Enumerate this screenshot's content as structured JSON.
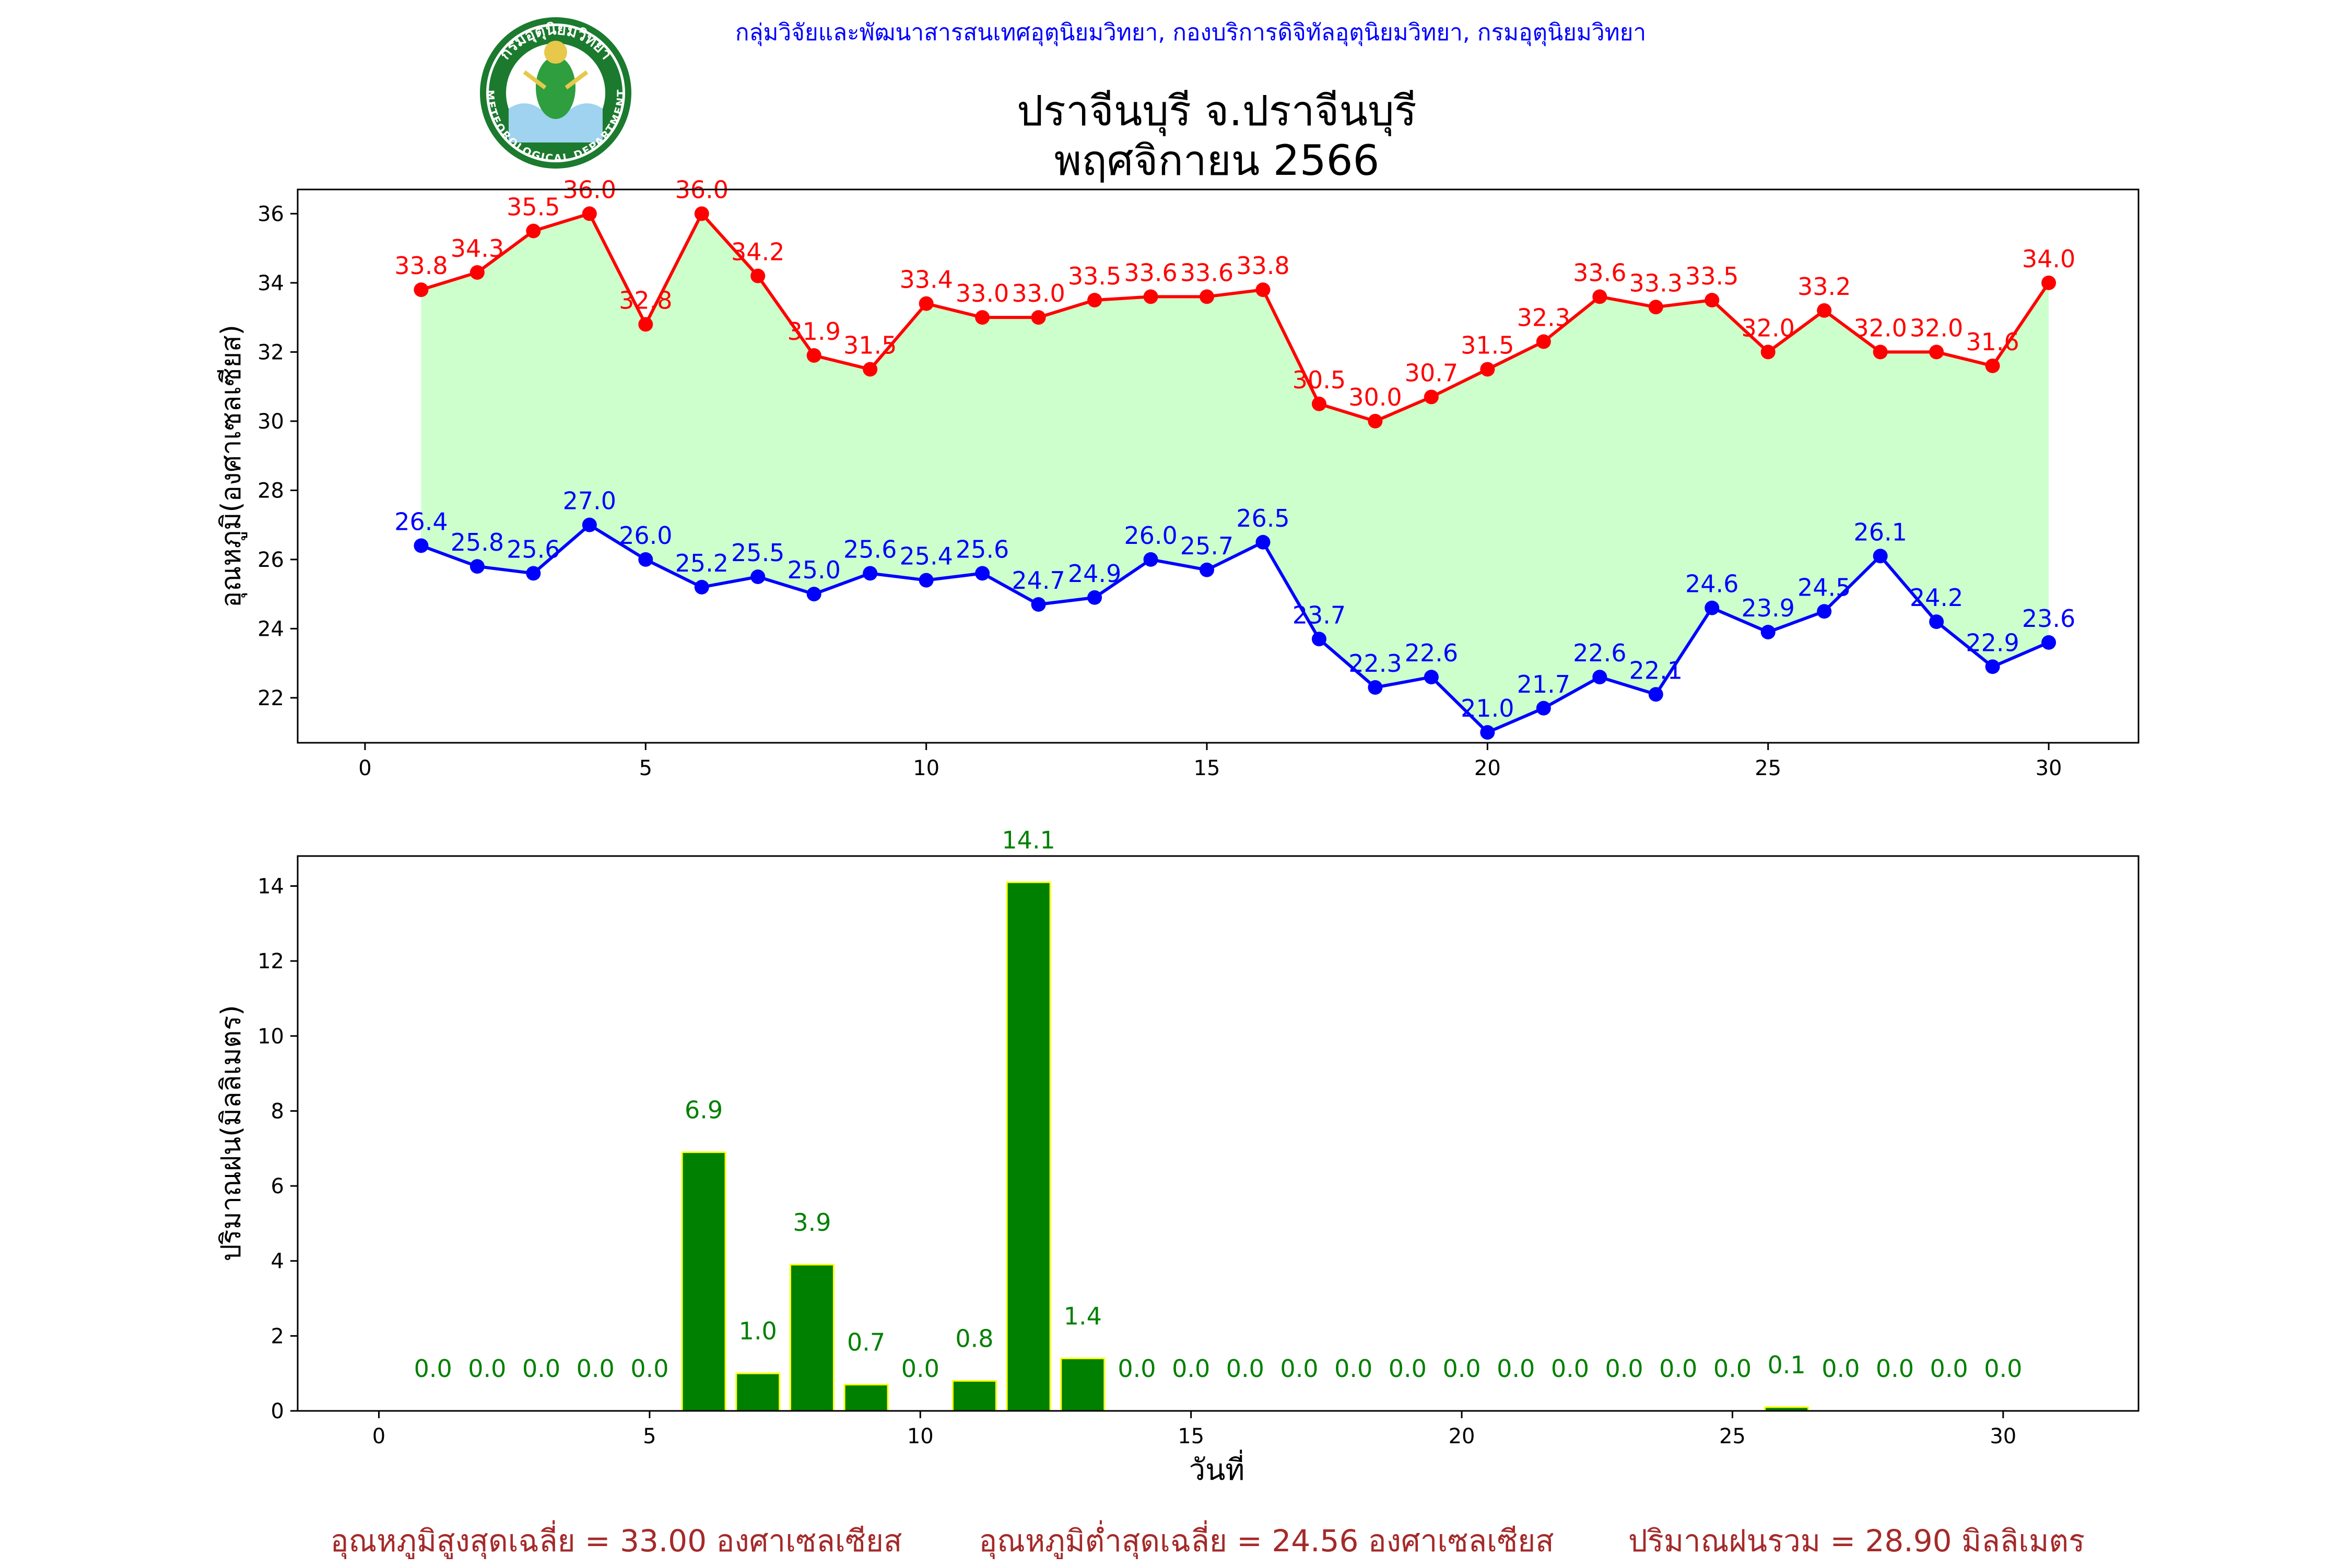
{
  "header": {
    "agency": "กลุ่มวิจัยและพัฒนาสารสนเทศอุตุนิยมวิทยา, กองบริการดิจิทัลอุตุนิยมวิทยา, กรมอุตุนิยมวิทยา",
    "title_line1": "ปราจีนบุรี จ.ปราจีนบุรี",
    "title_line2": "พฤศจิกายน 2566",
    "logo_text": "กรมอุตุนิยมวิทยา",
    "logo_text_en": "METEOROLOGICAL DEPARTMENT"
  },
  "footer": {
    "avg_max": "อุณหภูมิสูงสุดเฉลี่ย = 33.00 องศาเซลเซียส",
    "avg_min": "อุณหภูมิต่ำสุดเฉลี่ย = 24.56 องศาเซลเซียส",
    "total_rain": "ปริมาณฝนรวม = 28.90 มิลลิเมตร"
  },
  "colors": {
    "max": "#ff0000",
    "min": "#0000ff",
    "fill": "#ccffcc",
    "bar": "#008000",
    "bar_edge": "#ffff00",
    "rain_label": "#008000",
    "header_text": "#0000ff",
    "footer_text": "#a52a2a"
  },
  "chart_data": [
    {
      "type": "line",
      "ylabel": "อุณหภูมิ(องศาเซลเซียส)",
      "xlabel": "",
      "xlim": [
        -1.2,
        31.6
      ],
      "ylim": [
        20.7,
        36.7
      ],
      "xticks": [
        0,
        5,
        10,
        15,
        20,
        25,
        30
      ],
      "yticks": [
        22,
        24,
        26,
        28,
        30,
        32,
        34,
        36
      ],
      "grid": false,
      "fill_between": true,
      "x": [
        1,
        2,
        3,
        4,
        5,
        6,
        7,
        8,
        9,
        10,
        11,
        12,
        13,
        14,
        15,
        16,
        17,
        18,
        19,
        20,
        21,
        22,
        23,
        24,
        25,
        26,
        27,
        28,
        29,
        30
      ],
      "series": [
        {
          "key": "max",
          "values": [
            33.8,
            34.3,
            35.5,
            36.0,
            32.8,
            36.0,
            34.2,
            31.9,
            31.5,
            33.4,
            33.0,
            33.0,
            33.5,
            33.6,
            33.6,
            33.8,
            30.5,
            30.0,
            30.7,
            31.5,
            32.3,
            33.6,
            33.3,
            33.5,
            32.0,
            33.2,
            32.0,
            32.0,
            31.6,
            34.0
          ],
          "labels": [
            "33.8",
            "34.3",
            "35.5",
            "36.0",
            "32.8",
            "36.0",
            "34.2",
            "31.9",
            "31.5",
            "33.4",
            "33.0",
            "33.0",
            "33.5",
            "33.6",
            "33.6",
            "33.8",
            "30.5",
            "30.0",
            "30.7",
            "31.5",
            "32.3",
            "33.6",
            "33.3",
            "33.5",
            "32.0",
            "33.2",
            "32.0",
            "32.0",
            "31.6",
            "34.0"
          ]
        },
        {
          "key": "min",
          "values": [
            26.4,
            25.8,
            25.6,
            27.0,
            26.0,
            25.2,
            25.5,
            25.0,
            25.6,
            25.4,
            25.6,
            24.7,
            24.9,
            26.0,
            25.7,
            26.5,
            23.7,
            22.3,
            22.6,
            21.0,
            21.7,
            22.6,
            22.1,
            24.6,
            23.9,
            24.5,
            26.1,
            24.2,
            22.9,
            23.6
          ],
          "labels": [
            "26.4",
            "25.8",
            "25.6",
            "27.0",
            "26.0",
            "25.2",
            "25.5",
            "25.0",
            "25.6",
            "25.4",
            "25.6",
            "24.7",
            "24.9",
            "26.0",
            "25.7",
            "26.5",
            "23.7",
            "22.3",
            "22.6",
            "21.0",
            "21.7",
            "22.6",
            "22.1",
            "24.6",
            "23.9",
            "24.5",
            "26.1",
            "24.2",
            "22.9",
            "23.6"
          ]
        }
      ]
    },
    {
      "type": "bar",
      "ylabel": "ปริมาณฝน(มิลลิเมตร)",
      "xlabel": "วันที่",
      "xlim": [
        -1.5,
        32.5
      ],
      "ylim": [
        0,
        14.8
      ],
      "xticks": [
        0,
        5,
        10,
        15,
        20,
        25,
        30
      ],
      "yticks": [
        0,
        2,
        4,
        6,
        8,
        10,
        12,
        14
      ],
      "grid": false,
      "x": [
        1,
        2,
        3,
        4,
        5,
        6,
        7,
        8,
        9,
        10,
        11,
        12,
        13,
        14,
        15,
        16,
        17,
        18,
        19,
        20,
        21,
        22,
        23,
        24,
        25,
        26,
        27,
        28,
        29,
        30
      ],
      "values": [
        0.0,
        0.0,
        0.0,
        0.0,
        0.0,
        6.9,
        1.0,
        3.9,
        0.7,
        0.0,
        0.8,
        14.1,
        1.4,
        0.0,
        0.0,
        0.0,
        0.0,
        0.0,
        0.0,
        0.0,
        0.0,
        0.0,
        0.0,
        0.0,
        0.0,
        0.1,
        0.0,
        0.0,
        0.0,
        0.0
      ],
      "labels": [
        "0.0",
        "0.0",
        "0.0",
        "0.0",
        "0.0",
        "6.9",
        "1.0",
        "3.9",
        "0.7",
        "0.0",
        "0.8",
        "14.1",
        "1.4",
        "0.0",
        "0.0",
        "0.0",
        "0.0",
        "0.0",
        "0.0",
        "0.0",
        "0.0",
        "0.0",
        "0.0",
        "0.0",
        "0.0",
        "0.1",
        "0.0",
        "0.0",
        "0.0",
        "0.0"
      ]
    }
  ]
}
